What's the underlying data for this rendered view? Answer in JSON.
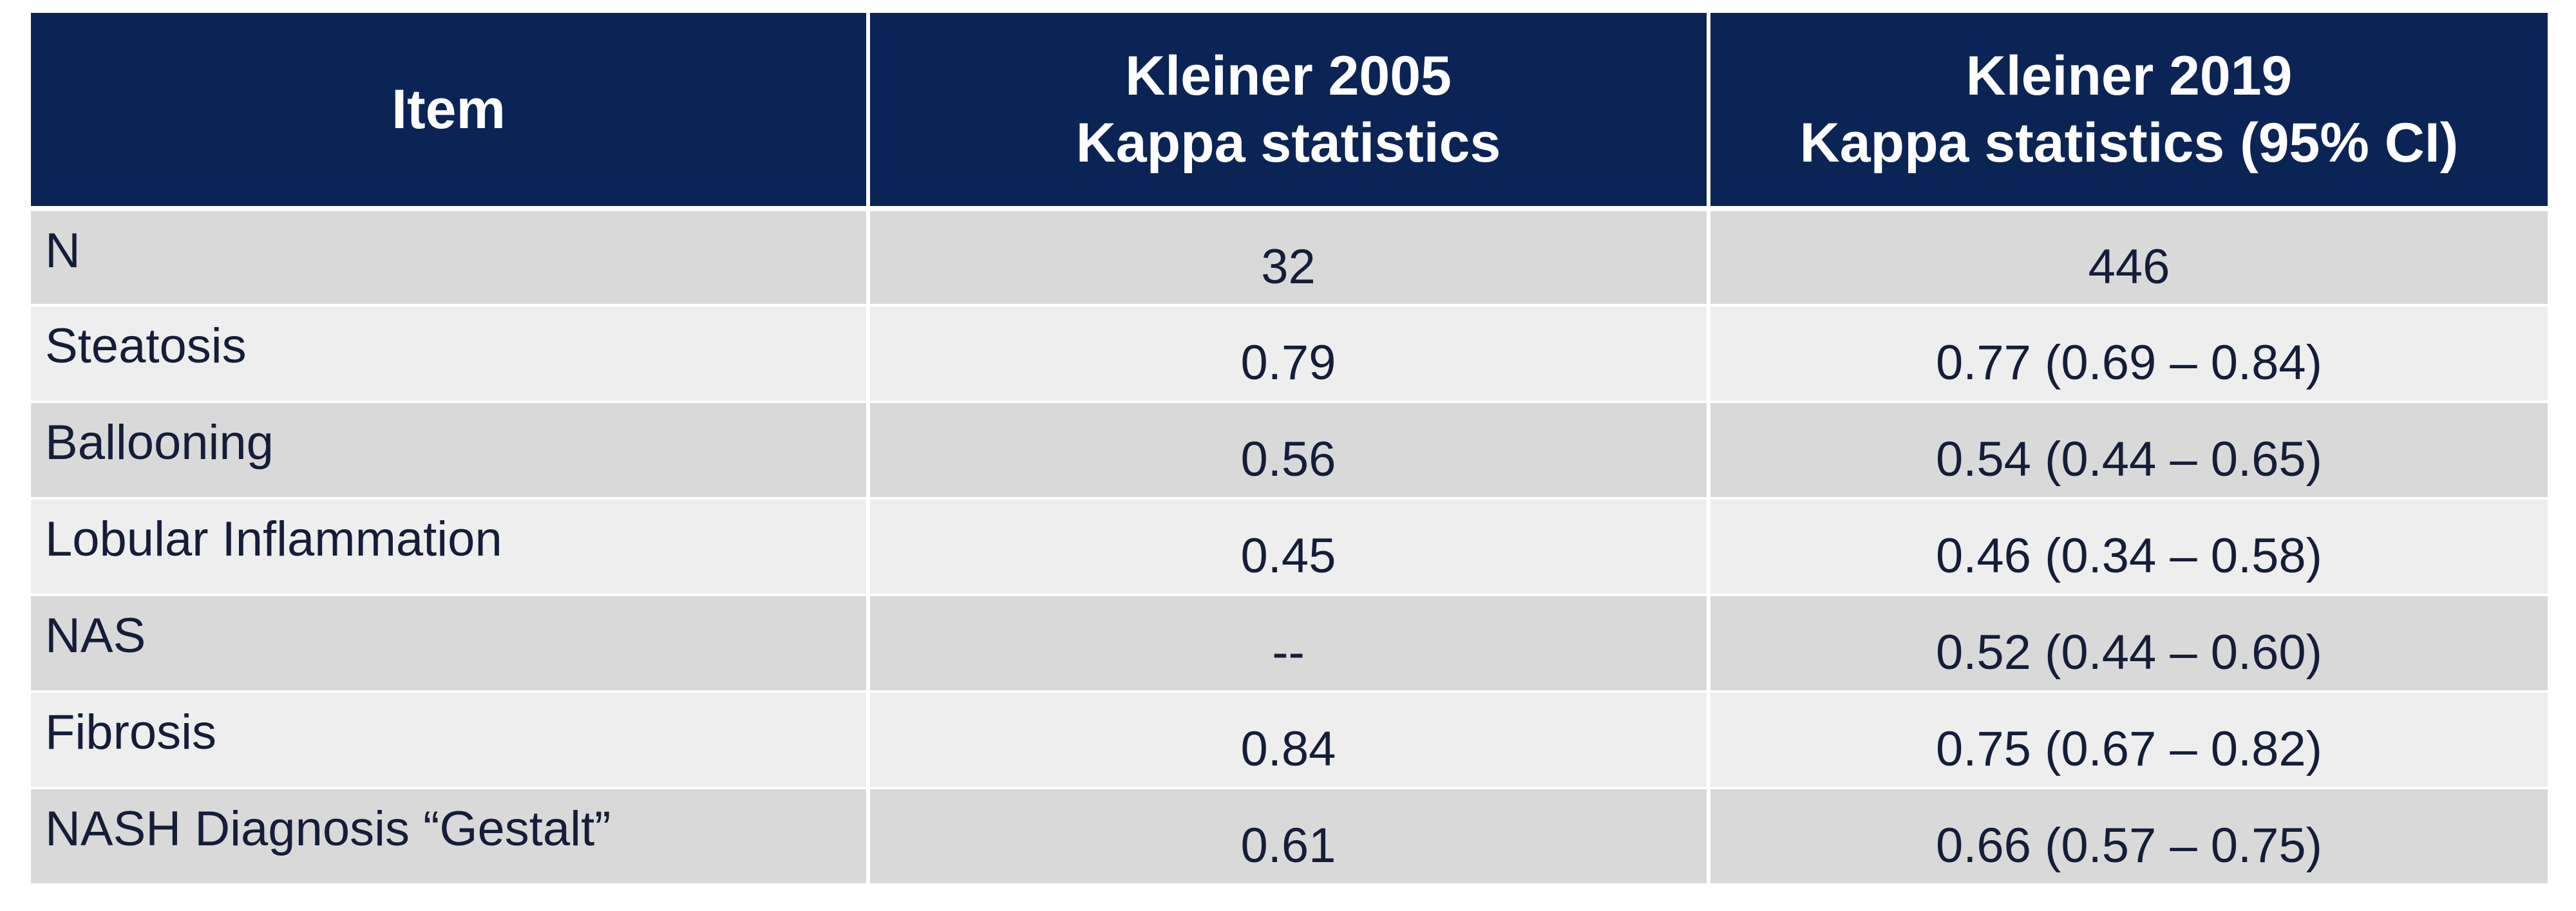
{
  "table": {
    "headers": [
      {
        "lines": [
          "Item"
        ]
      },
      {
        "lines": [
          "Kleiner 2005",
          "Kappa statistics"
        ]
      },
      {
        "lines": [
          "Kleiner 2019",
          "Kappa statistics (95% CI)"
        ]
      }
    ],
    "rows": [
      {
        "item": "N",
        "k2005": "32",
        "k2019": "446"
      },
      {
        "item": "Steatosis",
        "k2005": "0.79",
        "k2019": "0.77 (0.69 – 0.84)"
      },
      {
        "item": "Ballooning",
        "k2005": "0.56",
        "k2019": "0.54 (0.44 – 0.65)"
      },
      {
        "item": "Lobular Inflammation",
        "k2005": "0.45",
        "k2019": "0.46 (0.34 – 0.58)"
      },
      {
        "item": "NAS",
        "k2005": "--",
        "k2019": "0.52 (0.44 – 0.60)"
      },
      {
        "item": "Fibrosis",
        "k2005": "0.84",
        "k2019": "0.75 (0.67 – 0.82)"
      },
      {
        "item": "NASH Diagnosis “Gestalt”",
        "k2005": "0.61",
        "k2019": "0.66 (0.57 – 0.75)"
      }
    ]
  },
  "colors": {
    "header_bg": "#0b2456",
    "header_text": "#ffffff",
    "row_dark": "#d9d9d9",
    "row_light": "#eeeeee",
    "body_text": "#151d3a"
  }
}
